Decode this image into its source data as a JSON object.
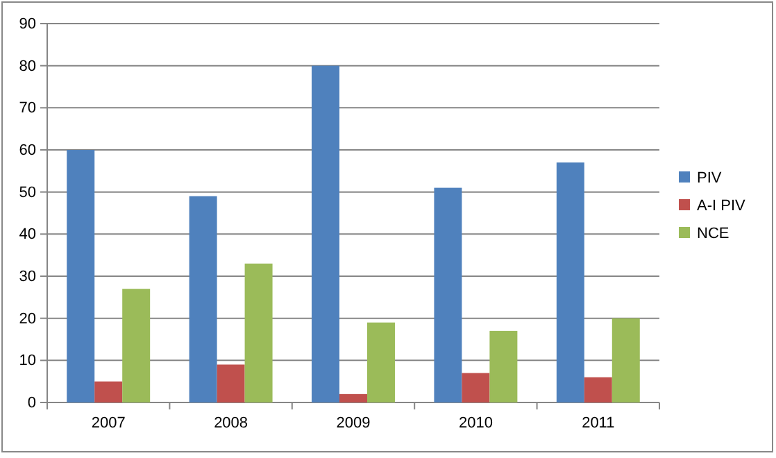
{
  "chart_data": {
    "type": "bar",
    "categories": [
      "2007",
      "2008",
      "2009",
      "2010",
      "2011"
    ],
    "series": [
      {
        "name": "PIV",
        "color": "#4f81bd",
        "values": [
          60,
          49,
          80,
          51,
          57
        ]
      },
      {
        "name": "A-I PIV",
        "color": "#c0504d",
        "values": [
          5,
          9,
          2,
          7,
          6
        ]
      },
      {
        "name": "NCE",
        "color": "#9bbb59",
        "values": [
          27,
          33,
          19,
          17,
          20
        ]
      }
    ],
    "ylim": [
      0,
      90
    ],
    "yticks": [
      0,
      10,
      20,
      30,
      40,
      50,
      60,
      70,
      80,
      90
    ],
    "grid": "y",
    "legend": "right"
  }
}
